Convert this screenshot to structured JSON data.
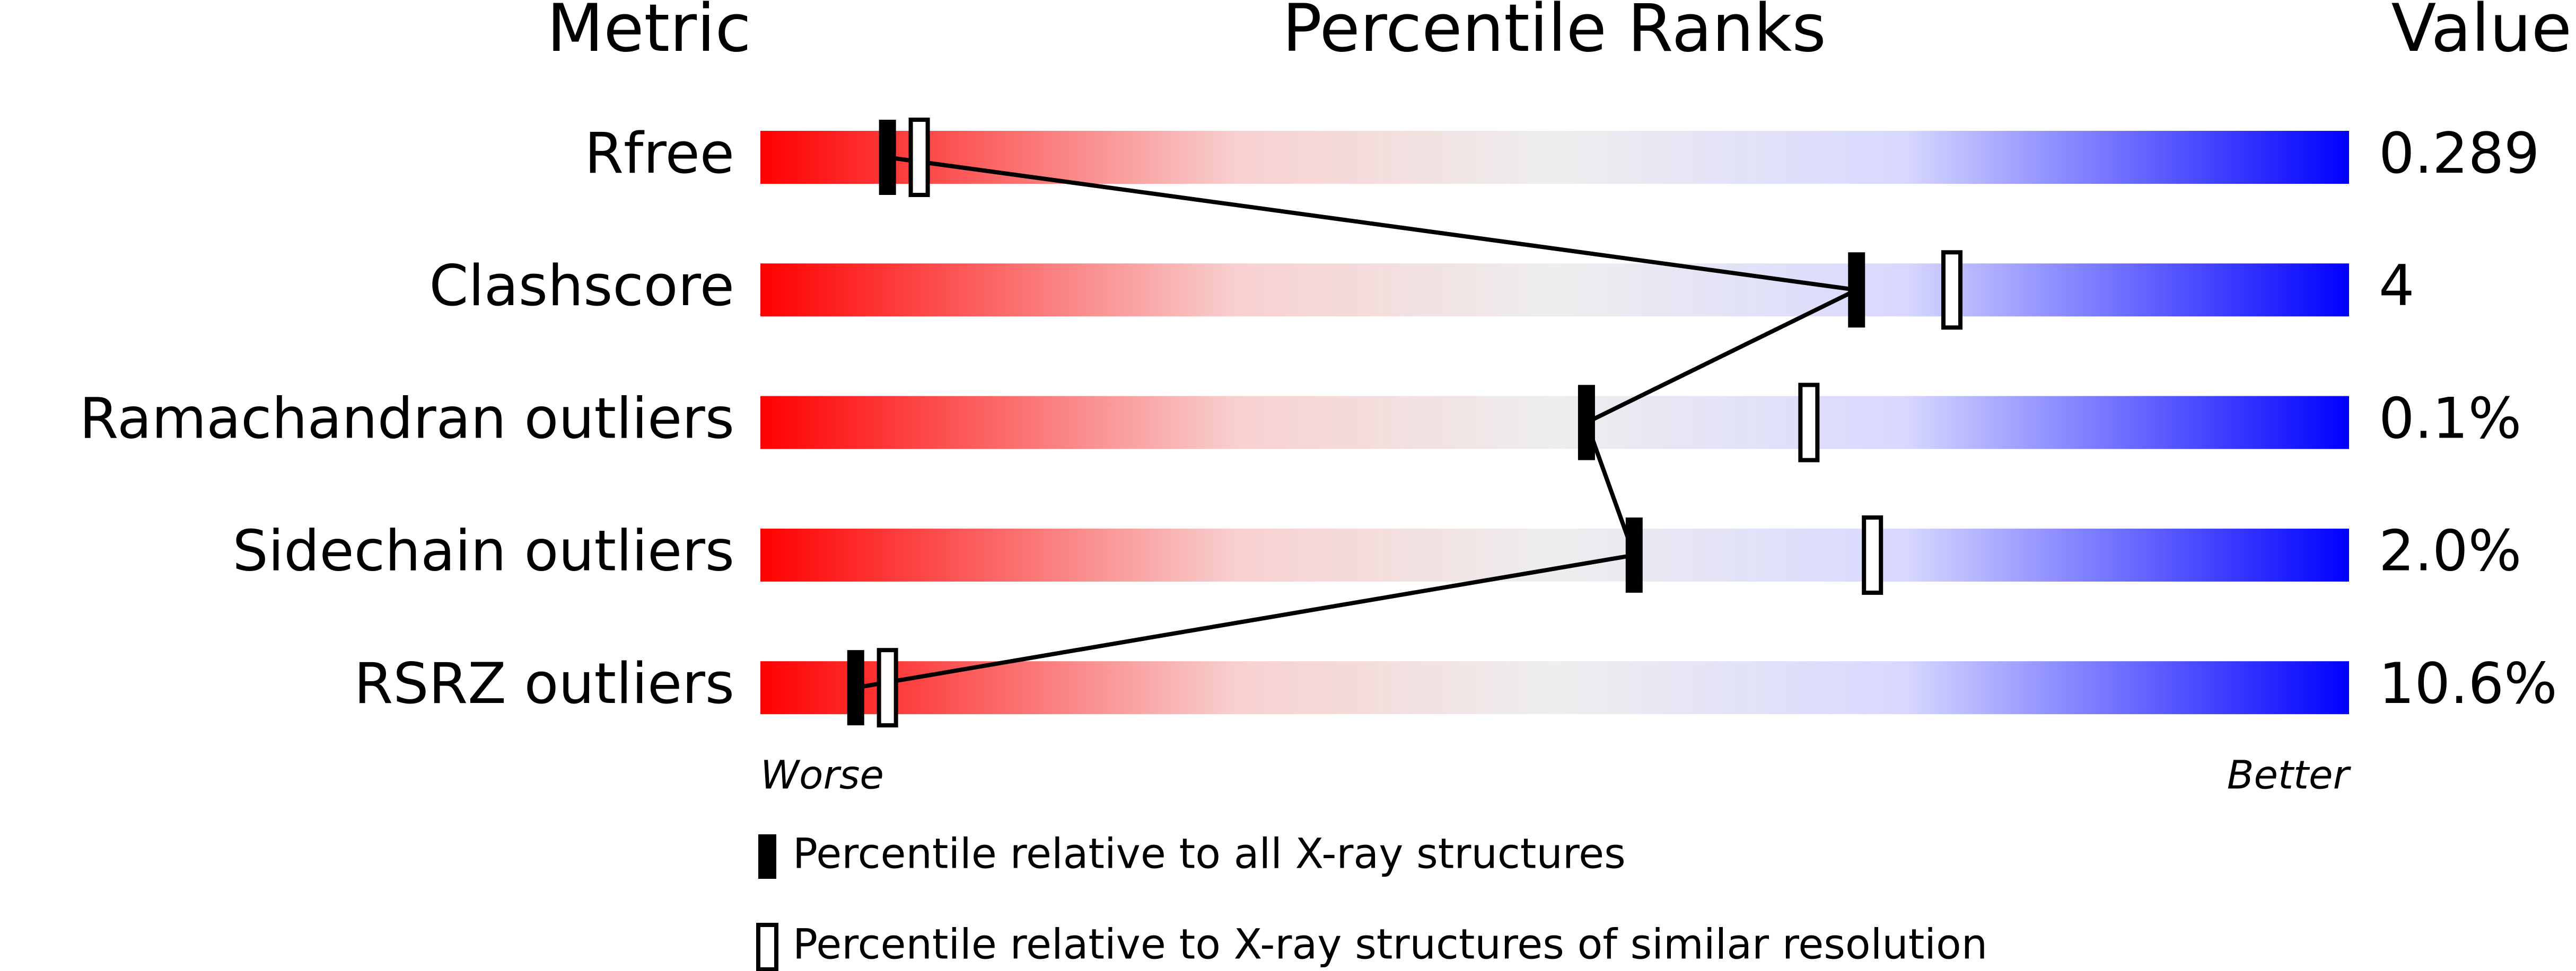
{
  "chart_data": {
    "type": "percentile",
    "title": "Percentile Ranks",
    "metric_header": "Metric",
    "value_header": "Value",
    "categories": [
      "Rfree",
      "Clashscore",
      "Ramachandran outliers",
      "Sidechain outliers",
      "RSRZ outliers"
    ],
    "metric_values": [
      "0.289",
      "4",
      "0.1%",
      "2.0%",
      "10.6%"
    ],
    "series": [
      {
        "name": "Percentile relative to all X-ray structures",
        "color": "#000000",
        "filled": true,
        "values": [
          8,
          69,
          52,
          55,
          6
        ]
      },
      {
        "name": "Percentile relative to X-ray structures of similar resolution",
        "color": "#000000",
        "filled": false,
        "values": [
          10,
          75,
          66,
          70,
          8
        ]
      }
    ],
    "xlim": [
      0,
      100
    ],
    "x_low_label": "Worse",
    "x_high_label": "Better"
  }
}
